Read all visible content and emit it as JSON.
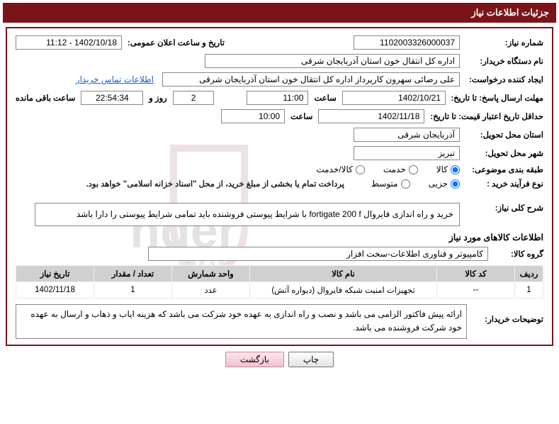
{
  "header": {
    "title": "جزئیات اطلاعات نیاز"
  },
  "need": {
    "number_label": "شماره نیاز:",
    "number": "1102003326000037",
    "announce_label": "تاریخ و ساعت اعلان عمومی:",
    "announce": "1402/10/18 - 11:12"
  },
  "buyer": {
    "org_label": "نام دستگاه خریدار:",
    "org": "اداره کل انتقال خون استان آذربایجان شرقی",
    "requester_label": "ایجاد کننده درخواست:",
    "requester": "علی رضائی سهرون کارپرداز اداره کل انتقال خون استان آذربایجان شرقی",
    "contact_link": "اطلاعات تماس خریدار"
  },
  "deadline_reply": {
    "label": "مهلت ارسال پاسخ: تا تاریخ:",
    "date": "1402/10/21",
    "time_label": "ساعت",
    "time": "11:00",
    "days": "2",
    "days_suffix": "روز و",
    "countdown": "22:54:34",
    "remaining_label": "ساعت باقی مانده"
  },
  "validity": {
    "label": "حداقل تاریخ اعتبار قیمت: تا تاریخ:",
    "date": "1402/11/18",
    "time_label": "ساعت",
    "time": "10:00"
  },
  "location": {
    "province_label": "استان محل تحویل:",
    "province": "آذربایجان شرقی",
    "city_label": "شهر محل تحویل:",
    "city": "تبریز"
  },
  "category": {
    "label": "طبقه بندی موضوعی:",
    "options": [
      {
        "label": "کالا",
        "checked": true
      },
      {
        "label": "خدمت",
        "checked": false
      },
      {
        "label": "کالا/خدمت",
        "checked": false
      }
    ]
  },
  "process": {
    "label": "نوع فرآیند خرید :",
    "options": [
      {
        "label": "جزیی",
        "checked": true
      },
      {
        "label": "متوسط",
        "checked": false
      }
    ],
    "payment_note": "پرداخت تمام یا بخشی از مبلغ خرید، از محل \"اسناد خزانه اسلامی\" خواهد بود."
  },
  "general": {
    "label": "شرح کلی نیاز:",
    "text": "خرید و راه اندازی فایروال fortigate 200 f با شرایط پیوستی فروشنده باید تمامی شرایط پیوستی را دارا باشد"
  },
  "goods_section": {
    "title": "اطلاعات کالاهای مورد نیاز",
    "group_label": "گروه کالا:",
    "group": "کامپیوتر و فناوری اطلاعات-سخت افزار"
  },
  "table": {
    "columns": [
      "ردیف",
      "کد کالا",
      "نام کالا",
      "واحد شمارش",
      "تعداد / مقدار",
      "تاریخ نیاز"
    ],
    "widths": [
      "40px",
      "110px",
      "auto",
      "110px",
      "110px",
      "110px"
    ],
    "rows": [
      [
        "1",
        "--",
        "تجهیزات امنیت شبکه فایروال (دیواره آتش)",
        "عدد",
        "1",
        "1402/11/18"
      ]
    ]
  },
  "buyer_notes": {
    "label": "توضیحات خریدار:",
    "text": "ارائه پیش فاکتور الزامی می باشد و نصب و راه اندازی به عهده خود شرکت می باشد که هزینه ایاب و ذهاب و ارسال به عهده خود شرکت فروشنده می باشد."
  },
  "buttons": {
    "print": "چاپ",
    "back": "بازگشت"
  },
  "colors": {
    "primary": "#7a1418",
    "link": "#1a5fd0",
    "th_bg": "#d0d0d0"
  }
}
